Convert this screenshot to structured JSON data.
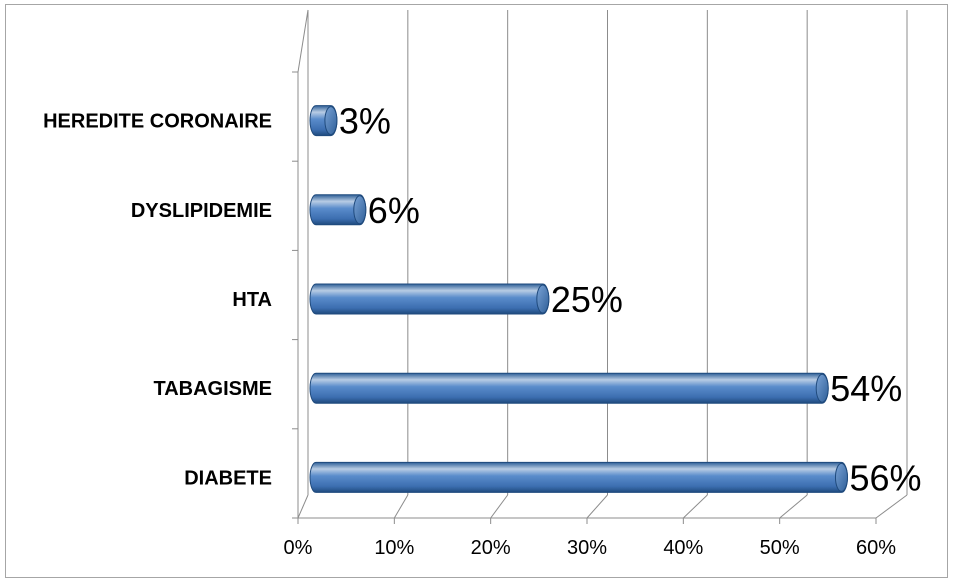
{
  "chart_data": {
    "type": "bar",
    "orientation": "horizontal",
    "style": "3d-cylinder",
    "categories": [
      "DIABETE",
      "TABAGISME",
      "HTA",
      "DYSLIPIDEMIE",
      "HEREDITE CORONAIRE"
    ],
    "values": [
      56,
      54,
      25,
      6,
      3
    ],
    "data_labels": [
      "56%",
      "54%",
      "25%",
      "6%",
      "3%"
    ],
    "x_ticks": [
      "0%",
      "10%",
      "20%",
      "30%",
      "40%",
      "50%",
      "60%"
    ],
    "xlim": [
      0,
      60
    ],
    "grid": true,
    "legend": "none",
    "colors": {
      "bar_main": "#4f81bd",
      "bar_light": "#b8cce4",
      "bar_dark": "#2c5a8c",
      "bar_end": "#5c8cc8",
      "gridline": "#8c8c8c",
      "axis": "#8c8c8c"
    }
  }
}
